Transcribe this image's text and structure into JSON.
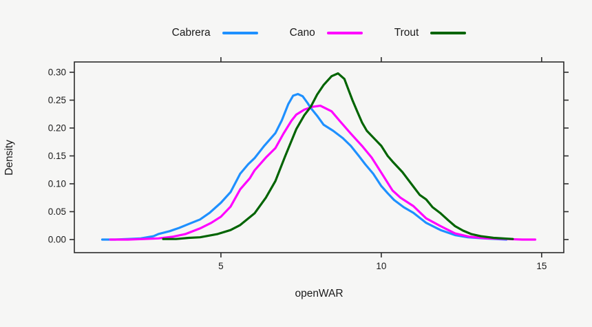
{
  "chart_data": {
    "type": "line",
    "subtype": "kernel-density",
    "title": "",
    "xlabel": "openWAR",
    "ylabel": "Density",
    "xlim": [
      0.43,
      15.69
    ],
    "ylim": [
      -0.0235,
      0.3185
    ],
    "grid": false,
    "legend_position": "top-center",
    "frame_color": "#2b2b2b",
    "text_color": "#1a1a1a",
    "background_color": "#f6f6f5",
    "tick_font_size": 13.5,
    "x_ticks": [
      {
        "value": 5,
        "label": "5"
      },
      {
        "value": 10,
        "label": "10"
      },
      {
        "value": 15,
        "label": "15"
      }
    ],
    "y_ticks": [
      {
        "value": 0.0,
        "label": "0.00"
      },
      {
        "value": 0.05,
        "label": "0.05"
      },
      {
        "value": 0.1,
        "label": "0.10"
      },
      {
        "value": 0.15,
        "label": "0.15"
      },
      {
        "value": 0.2,
        "label": "0.20"
      },
      {
        "value": 0.25,
        "label": "0.25"
      },
      {
        "value": 0.3,
        "label": "0.30"
      }
    ],
    "series": [
      {
        "name": "Cabrera",
        "color": "#1E90FF",
        "peak": {
          "x": 7.4,
          "y": 0.261
        },
        "points": [
          [
            1.3,
            0.0
          ],
          [
            1.7,
            0.0
          ],
          [
            2.1,
            0.001
          ],
          [
            2.5,
            0.002
          ],
          [
            2.9,
            0.006
          ],
          [
            3.05,
            0.01
          ],
          [
            3.4,
            0.015
          ],
          [
            3.7,
            0.021
          ],
          [
            4.0,
            0.028
          ],
          [
            4.35,
            0.036
          ],
          [
            4.65,
            0.048
          ],
          [
            5.0,
            0.066
          ],
          [
            5.3,
            0.085
          ],
          [
            5.6,
            0.118
          ],
          [
            5.85,
            0.135
          ],
          [
            6.05,
            0.146
          ],
          [
            6.35,
            0.168
          ],
          [
            6.7,
            0.191
          ],
          [
            6.9,
            0.214
          ],
          [
            7.1,
            0.243
          ],
          [
            7.25,
            0.258
          ],
          [
            7.4,
            0.261
          ],
          [
            7.55,
            0.257
          ],
          [
            7.7,
            0.245
          ],
          [
            7.8,
            0.236
          ],
          [
            8.0,
            0.222
          ],
          [
            8.2,
            0.206
          ],
          [
            8.5,
            0.195
          ],
          [
            8.8,
            0.182
          ],
          [
            9.05,
            0.168
          ],
          [
            9.3,
            0.15
          ],
          [
            9.5,
            0.135
          ],
          [
            9.75,
            0.118
          ],
          [
            10.0,
            0.096
          ],
          [
            10.2,
            0.083
          ],
          [
            10.4,
            0.071
          ],
          [
            10.7,
            0.058
          ],
          [
            11.0,
            0.048
          ],
          [
            11.4,
            0.03
          ],
          [
            11.85,
            0.017
          ],
          [
            12.3,
            0.008
          ],
          [
            12.7,
            0.004
          ],
          [
            13.2,
            0.002
          ],
          [
            13.9,
            0.0
          ]
        ]
      },
      {
        "name": "Cano",
        "color": "#FF00FF",
        "peak": {
          "x": 8.1,
          "y": 0.24
        },
        "points": [
          [
            1.55,
            0.0
          ],
          [
            2.1,
            0.0
          ],
          [
            2.6,
            0.001
          ],
          [
            3.05,
            0.002
          ],
          [
            3.5,
            0.005
          ],
          [
            3.9,
            0.01
          ],
          [
            4.35,
            0.02
          ],
          [
            4.7,
            0.03
          ],
          [
            5.0,
            0.041
          ],
          [
            5.3,
            0.059
          ],
          [
            5.6,
            0.09
          ],
          [
            5.9,
            0.11
          ],
          [
            6.05,
            0.124
          ],
          [
            6.4,
            0.147
          ],
          [
            6.7,
            0.164
          ],
          [
            6.95,
            0.19
          ],
          [
            7.2,
            0.213
          ],
          [
            7.35,
            0.224
          ],
          [
            7.6,
            0.233
          ],
          [
            7.85,
            0.238
          ],
          [
            8.1,
            0.24
          ],
          [
            8.45,
            0.23
          ],
          [
            8.7,
            0.213
          ],
          [
            9.05,
            0.19
          ],
          [
            9.4,
            0.168
          ],
          [
            9.7,
            0.147
          ],
          [
            10.0,
            0.12
          ],
          [
            10.35,
            0.088
          ],
          [
            10.6,
            0.075
          ],
          [
            11.0,
            0.06
          ],
          [
            11.4,
            0.038
          ],
          [
            11.85,
            0.024
          ],
          [
            12.3,
            0.011
          ],
          [
            12.75,
            0.005
          ],
          [
            13.3,
            0.002
          ],
          [
            13.9,
            0.001
          ],
          [
            14.4,
            0.0
          ],
          [
            14.8,
            0.0
          ]
        ]
      },
      {
        "name": "Trout",
        "color": "#006400",
        "peak": {
          "x": 8.65,
          "y": 0.298
        },
        "points": [
          [
            3.2,
            0.001
          ],
          [
            3.6,
            0.001
          ],
          [
            4.0,
            0.003
          ],
          [
            4.35,
            0.004
          ],
          [
            4.9,
            0.01
          ],
          [
            5.3,
            0.017
          ],
          [
            5.6,
            0.026
          ],
          [
            6.05,
            0.047
          ],
          [
            6.4,
            0.075
          ],
          [
            6.7,
            0.105
          ],
          [
            7.0,
            0.149
          ],
          [
            7.35,
            0.198
          ],
          [
            7.6,
            0.223
          ],
          [
            7.8,
            0.238
          ],
          [
            8.0,
            0.26
          ],
          [
            8.2,
            0.277
          ],
          [
            8.45,
            0.293
          ],
          [
            8.65,
            0.298
          ],
          [
            8.85,
            0.288
          ],
          [
            9.1,
            0.25
          ],
          [
            9.25,
            0.23
          ],
          [
            9.4,
            0.21
          ],
          [
            9.55,
            0.195
          ],
          [
            9.8,
            0.18
          ],
          [
            10.0,
            0.168
          ],
          [
            10.2,
            0.15
          ],
          [
            10.35,
            0.14
          ],
          [
            10.66,
            0.121
          ],
          [
            11.0,
            0.095
          ],
          [
            11.2,
            0.08
          ],
          [
            11.4,
            0.072
          ],
          [
            11.6,
            0.058
          ],
          [
            11.85,
            0.047
          ],
          [
            12.1,
            0.034
          ],
          [
            12.3,
            0.024
          ],
          [
            12.55,
            0.016
          ],
          [
            12.8,
            0.01
          ],
          [
            13.1,
            0.006
          ],
          [
            13.5,
            0.003
          ],
          [
            13.8,
            0.002
          ],
          [
            14.1,
            0.001
          ]
        ]
      }
    ]
  }
}
